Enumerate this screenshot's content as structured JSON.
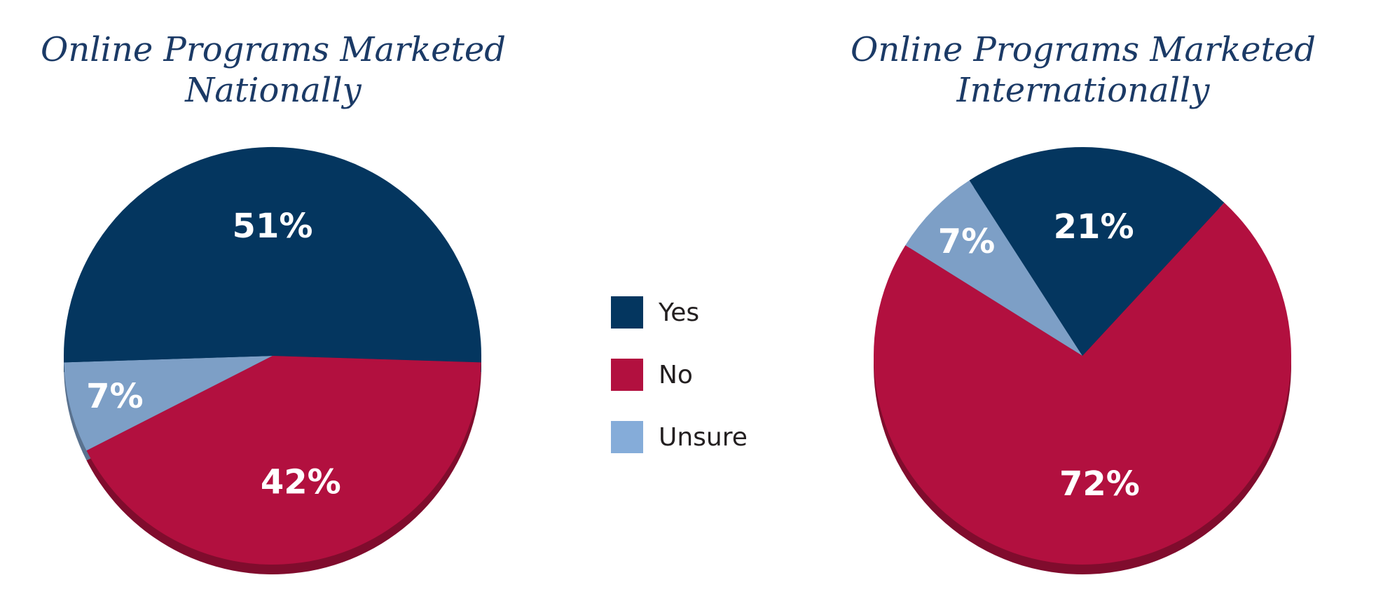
{
  "colors": {
    "yes": "#04365f",
    "no": "#b2103f",
    "unsure": "#7d9fc6",
    "title": "#1b3a66"
  },
  "legend": [
    {
      "key": "yes",
      "label": "Yes",
      "color": "#04365f"
    },
    {
      "key": "no",
      "label": "No",
      "color": "#b2103f"
    },
    {
      "key": "unsure",
      "label": "Unsure",
      "color": "#85acd9"
    }
  ],
  "chart_data": [
    {
      "type": "pie",
      "title_lines": [
        "Online Programs Marketed",
        "Nationally"
      ],
      "slices": [
        {
          "key": "yes",
          "label": "Yes",
          "value": 51,
          "display": "51%"
        },
        {
          "key": "no",
          "label": "No",
          "value": 42,
          "display": "42%"
        },
        {
          "key": "unsure",
          "label": "Unsure",
          "value": 7,
          "display": "7%"
        }
      ]
    },
    {
      "type": "pie",
      "title_lines": [
        "Online Programs Marketed",
        "Internationally"
      ],
      "slices": [
        {
          "key": "yes",
          "label": "Yes",
          "value": 21,
          "display": "21%"
        },
        {
          "key": "no",
          "label": "No",
          "value": 72,
          "display": "72%"
        },
        {
          "key": "unsure",
          "label": "Unsure",
          "value": 7,
          "display": "7%"
        }
      ]
    }
  ]
}
